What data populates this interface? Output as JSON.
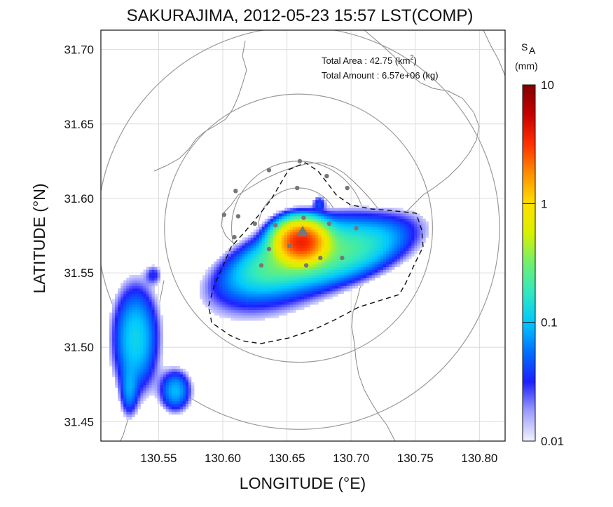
{
  "chart_data": {
    "type": "heatmap",
    "title": "SAKURAJIMA, 2012-05-23 15:57 LST(COMP)",
    "xlabel": "LONGITUDE (°E)",
    "ylabel": "LATITUDE (°N)",
    "xlim": [
      130.505,
      130.82
    ],
    "ylim": [
      31.437,
      31.713
    ],
    "xticks": [
      "130.55",
      "130.60",
      "130.65",
      "130.70",
      "130.75",
      "130.80"
    ],
    "yticks": [
      "31.45",
      "31.50",
      "31.55",
      "31.60",
      "31.65",
      "31.70"
    ],
    "grid": true,
    "annotations": {
      "area_label": "Total Area   : 42.75 (km",
      "area_sup": "2",
      "area_close": ")",
      "amount_label": "Total Amount : 6.57e+06 (kg)"
    },
    "colorbar": {
      "label_main": "S",
      "label_sub": "A",
      "unit": "(mm)",
      "scale": "log",
      "range": [
        0.01,
        10
      ],
      "tick_labels": [
        "10",
        "1",
        "0.1",
        "0.01"
      ],
      "tick_values": [
        10,
        1,
        0.1,
        0.01
      ],
      "colors": [
        "#f2f2ff",
        "#9d9dff",
        "#1f1fff",
        "#0070ff",
        "#00c8ff",
        "#30e8c0",
        "#70f070",
        "#d8f000",
        "#ffe000",
        "#ff9000",
        "#ff3000",
        "#c80000",
        "#800000"
      ]
    },
    "vent": {
      "lon": 130.659,
      "lat": 31.58
    },
    "range_rings_km": [
      3,
      5,
      10,
      15
    ],
    "stations": [
      [
        130.636,
        31.619
      ],
      [
        130.66,
        31.625
      ],
      [
        130.681,
        31.615
      ],
      [
        130.697,
        31.607
      ],
      [
        130.61,
        31.605
      ],
      [
        130.658,
        31.607
      ],
      [
        130.601,
        31.589
      ],
      [
        130.612,
        31.588
      ],
      [
        130.625,
        31.583
      ],
      [
        130.641,
        31.582
      ],
      [
        130.663,
        31.587
      ],
      [
        130.683,
        31.583
      ],
      [
        130.704,
        31.58
      ],
      [
        130.609,
        31.574
      ],
      [
        130.636,
        31.566
      ],
      [
        130.652,
        31.568
      ],
      [
        130.676,
        31.56
      ],
      [
        130.63,
        31.555
      ],
      [
        130.665,
        31.555
      ],
      [
        130.693,
        31.56
      ]
    ],
    "deposits": [
      {
        "lon": 130.66,
        "lat": 31.57,
        "sx": 0.01,
        "sy": 0.007,
        "peak": 3.5,
        "rot": 0
      },
      {
        "lon": 130.652,
        "lat": 31.56,
        "sx": 0.028,
        "sy": 0.01,
        "peak": 0.3,
        "rot": 18
      },
      {
        "lon": 130.697,
        "lat": 31.563,
        "sx": 0.028,
        "sy": 0.01,
        "peak": 0.18,
        "rot": 16
      },
      {
        "lon": 130.64,
        "lat": 31.538,
        "sx": 0.033,
        "sy": 0.013,
        "peak": 0.03,
        "rot": 14
      },
      {
        "lon": 130.531,
        "lat": 31.505,
        "sx": 0.01,
        "sy": 0.02,
        "peak": 0.12,
        "rot": 0
      },
      {
        "lon": 130.526,
        "lat": 31.47,
        "sx": 0.004,
        "sy": 0.01,
        "peak": 0.06,
        "rot": 0
      },
      {
        "lon": 130.562,
        "lat": 31.47,
        "sx": 0.007,
        "sy": 0.008,
        "peak": 0.09,
        "rot": 0
      },
      {
        "lon": 130.545,
        "lat": 31.548,
        "sx": 0.004,
        "sy": 0.004,
        "peak": 0.03,
        "rot": 0
      },
      {
        "lon": 130.674,
        "lat": 31.596,
        "sx": 0.003,
        "sy": 0.003,
        "peak": 0.04,
        "rot": 0
      }
    ]
  }
}
